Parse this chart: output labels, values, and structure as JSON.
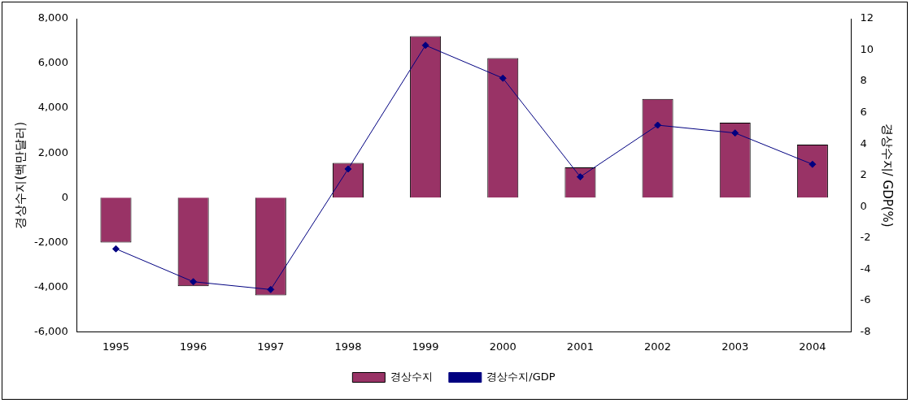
{
  "chart_data": {
    "type": "bar",
    "ylabel": "경상수지(백만달러)",
    "y2label": "경상수지/ GDP(%)",
    "categories": [
      "1995",
      "1996",
      "1997",
      "1998",
      "1999",
      "2000",
      "2001",
      "2002",
      "2003",
      "2004"
    ],
    "series": [
      {
        "name": "경상수지",
        "color": "#993366",
        "values": [
          -2010,
          -3960,
          -4370,
          1550,
          7220,
          6240,
          1350,
          4410,
          3350,
          2370
        ]
      },
      {
        "name": "경상수지/GDP",
        "type": "line",
        "axis": "y2",
        "color": "#000080",
        "marker": "diamond",
        "values": [
          -2.7,
          -4.8,
          -5.3,
          2.4,
          10.3,
          8.2,
          1.9,
          5.2,
          4.7,
          2.7
        ]
      }
    ],
    "ylim": [
      -6000,
      8000
    ],
    "yticks": [
      {
        "value": -6000,
        "label": "-6,000"
      },
      {
        "value": -4000,
        "label": "-4,000"
      },
      {
        "value": -2000,
        "label": "-2,000"
      },
      0,
      {
        "value": 2000,
        "label": "2,000"
      },
      {
        "value": 4000,
        "label": "4,000"
      },
      {
        "value": 6000,
        "label": "6,000"
      },
      {
        "value": 8000,
        "label": "8,000"
      }
    ],
    "y2lim": [
      -8,
      12
    ],
    "y2ticks": [
      -8,
      -6,
      -4,
      -2,
      0,
      2,
      4,
      6,
      8,
      10,
      12
    ],
    "grid": false,
    "legend": "bottom"
  }
}
